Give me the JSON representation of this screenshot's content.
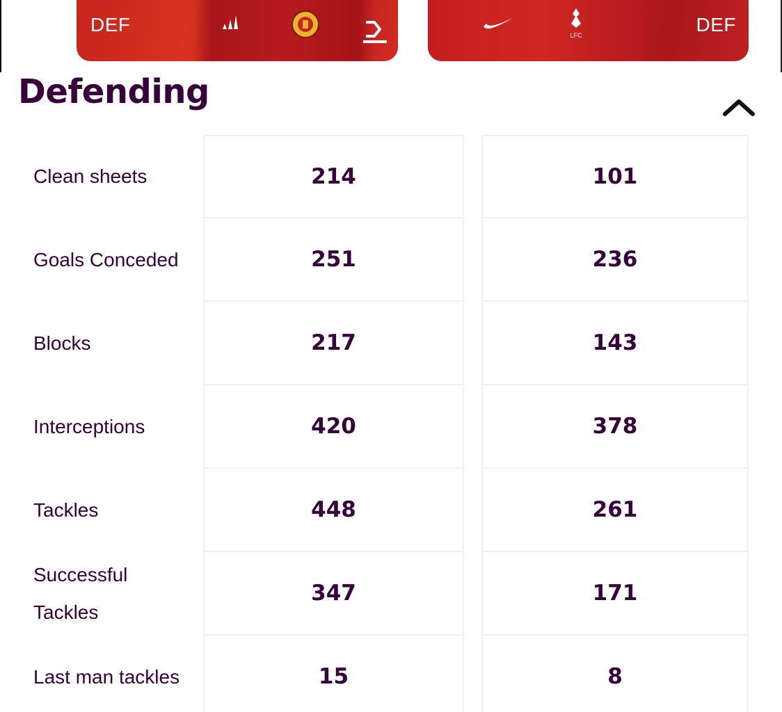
{
  "players": {
    "left": {
      "position": "DEF"
    },
    "right": {
      "position": "DEF"
    }
  },
  "section": {
    "title": "Defending",
    "toggle_icon": "chevron-up-icon"
  },
  "stats": [
    {
      "label": "Clean sheets",
      "a": "214",
      "b": "101"
    },
    {
      "label": "Goals Conceded",
      "a": "251",
      "b": "236"
    },
    {
      "label": "Blocks",
      "a": "217",
      "b": "143"
    },
    {
      "label": "Interceptions",
      "a": "420",
      "b": "378"
    },
    {
      "label": "Tackles",
      "a": "448",
      "b": "261"
    },
    {
      "label": "Successful Tackles",
      "a": "347",
      "b": "171"
    },
    {
      "label": "Last man tackles",
      "a": "15",
      "b": "8"
    }
  ],
  "colors": {
    "text_primary": "#37003c",
    "card_red": "#c6241e",
    "cell_border": "#f3eef4"
  }
}
